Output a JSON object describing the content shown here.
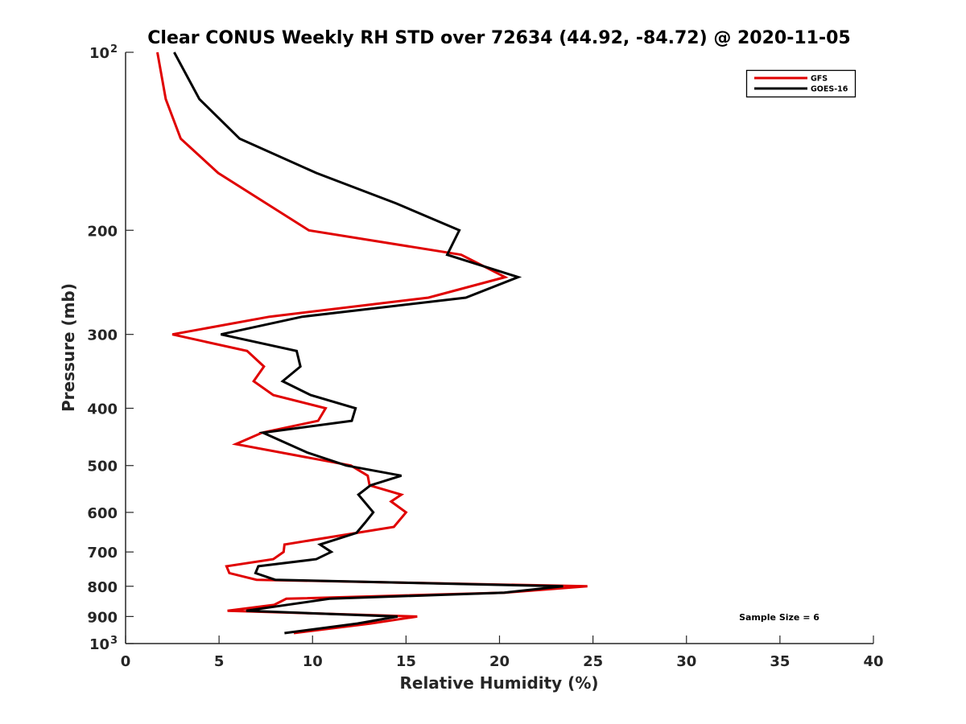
{
  "chart_data": {
    "type": "line",
    "title": "Clear CONUS Weekly RH STD over 72634 (44.92, -84.72) @ 2020-11-05",
    "xlabel": "Relative Humidity (%)",
    "ylabel": "Pressure (mb)",
    "xlim": [
      0,
      40
    ],
    "ylim": [
      1000,
      100
    ],
    "yscale": "log",
    "y_reversed": true,
    "grid": false,
    "legend_position": "top-right",
    "x_ticks": [
      0,
      5,
      10,
      15,
      20,
      25,
      30,
      35,
      40
    ],
    "x_tick_labels": [
      "0",
      "5",
      "10",
      "15",
      "20",
      "25",
      "30",
      "35",
      "40"
    ],
    "y_ticks": [
      {
        "value": 100,
        "label": "10",
        "sup": "2"
      },
      {
        "value": 200,
        "label": "200",
        "sup": ""
      },
      {
        "value": 300,
        "label": "300",
        "sup": ""
      },
      {
        "value": 400,
        "label": "400",
        "sup": ""
      },
      {
        "value": 500,
        "label": "500",
        "sup": ""
      },
      {
        "value": 600,
        "label": "600",
        "sup": ""
      },
      {
        "value": 700,
        "label": "700",
        "sup": ""
      },
      {
        "value": 800,
        "label": "800",
        "sup": ""
      },
      {
        "value": 900,
        "label": "900",
        "sup": ""
      },
      {
        "value": 1000,
        "label": "10",
        "sup": "3"
      }
    ],
    "series": [
      {
        "name": "GFS",
        "color": "#e00000",
        "points": [
          [
            1.7,
            100
          ],
          [
            2.15,
            120
          ],
          [
            2.95,
            140
          ],
          [
            4.95,
            160
          ],
          [
            9.8,
            200
          ],
          [
            17.95,
            220
          ],
          [
            20.3,
            240
          ],
          [
            16.2,
            260
          ],
          [
            7.7,
            280
          ],
          [
            2.5,
            300
          ],
          [
            6.5,
            320
          ],
          [
            7.4,
            340
          ],
          [
            6.85,
            360
          ],
          [
            7.9,
            380
          ],
          [
            10.7,
            400
          ],
          [
            10.3,
            420
          ],
          [
            7.3,
            440
          ],
          [
            5.9,
            460
          ],
          [
            12.05,
            500
          ],
          [
            12.95,
            520
          ],
          [
            13.05,
            540
          ],
          [
            14.75,
            560
          ],
          [
            14.2,
            575
          ],
          [
            15.0,
            600
          ],
          [
            14.35,
            635
          ],
          [
            8.5,
            680
          ],
          [
            8.45,
            700
          ],
          [
            7.9,
            720
          ],
          [
            5.4,
            740
          ],
          [
            5.55,
            760
          ],
          [
            7.0,
            780
          ],
          [
            24.7,
            800
          ],
          [
            20.3,
            820
          ],
          [
            8.6,
            840
          ],
          [
            7.95,
            860
          ],
          [
            5.45,
            880
          ],
          [
            15.6,
            900
          ],
          [
            13.1,
            925
          ],
          [
            9.0,
            960
          ]
        ]
      },
      {
        "name": "GOES-16",
        "color": "#000000",
        "points": [
          [
            2.6,
            100
          ],
          [
            3.95,
            120
          ],
          [
            6.1,
            140
          ],
          [
            10.2,
            160
          ],
          [
            14.45,
            180
          ],
          [
            17.85,
            200
          ],
          [
            17.2,
            220
          ],
          [
            21.0,
            240
          ],
          [
            18.2,
            260
          ],
          [
            9.45,
            280
          ],
          [
            5.1,
            300
          ],
          [
            9.15,
            320
          ],
          [
            9.35,
            340
          ],
          [
            8.4,
            360
          ],
          [
            9.9,
            380
          ],
          [
            12.3,
            400
          ],
          [
            12.1,
            420
          ],
          [
            7.35,
            440
          ],
          [
            9.7,
            475
          ],
          [
            11.8,
            500
          ],
          [
            14.75,
            520
          ],
          [
            13.1,
            540
          ],
          [
            12.45,
            560
          ],
          [
            13.25,
            600
          ],
          [
            12.8,
            625
          ],
          [
            12.35,
            650
          ],
          [
            10.4,
            680
          ],
          [
            11.0,
            700
          ],
          [
            10.2,
            720
          ],
          [
            7.1,
            740
          ],
          [
            6.95,
            760
          ],
          [
            8.0,
            780
          ],
          [
            23.4,
            800
          ],
          [
            20.25,
            820
          ],
          [
            10.9,
            840
          ],
          [
            6.45,
            880
          ],
          [
            14.55,
            900
          ],
          [
            12.4,
            925
          ],
          [
            8.5,
            960
          ]
        ]
      }
    ],
    "annotations": [
      "Sample Size = 6"
    ]
  }
}
